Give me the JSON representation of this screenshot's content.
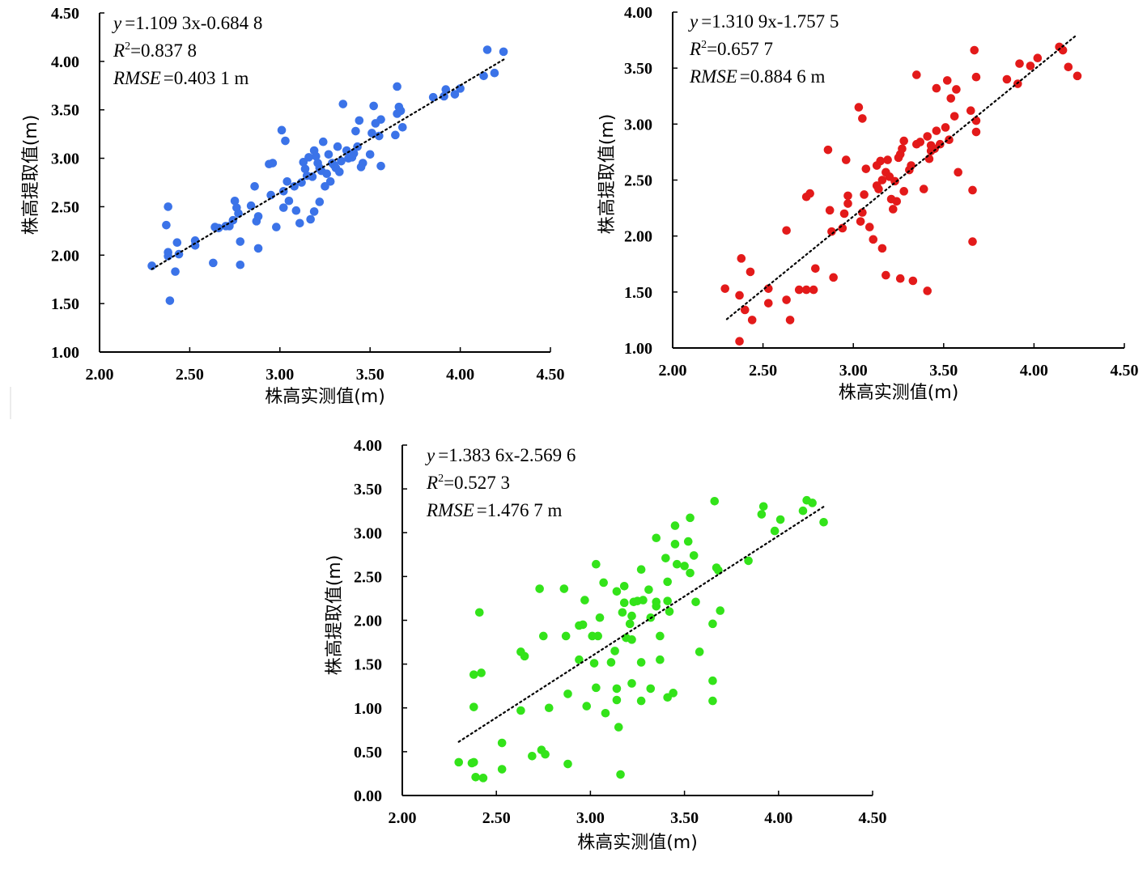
{
  "chart_data": [
    {
      "type": "scatter",
      "series_color": "#3b73e8",
      "xlabel": "株高实测值(m)",
      "ylabel": "株高提取值(m)",
      "xlim": [
        2.0,
        4.5
      ],
      "ylim": [
        1.0,
        4.5
      ],
      "x_ticks": [
        "2.00",
        "2.50",
        "3.00",
        "3.50",
        "4.00",
        "4.50"
      ],
      "y_ticks": [
        "1.00",
        "1.50",
        "2.00",
        "2.50",
        "3.00",
        "3.50",
        "4.00",
        "4.50"
      ],
      "grid": false,
      "stats": {
        "equation": {
          "lhs": "y",
          "rhs": "=1.109 3x-0.684 8"
        },
        "r2": {
          "label": "R",
          "sup": "2",
          "value": "=0.837 8"
        },
        "rmse": {
          "label": "RMSE",
          "value": "=0.403 1 m"
        }
      },
      "trendline": {
        "slope": 1.1093,
        "intercept": -0.6848,
        "x_range": [
          2.29,
          4.25
        ],
        "style": "dotted"
      },
      "points": [
        [
          2.29,
          1.89
        ],
        [
          2.37,
          2.31
        ],
        [
          2.38,
          2.5
        ],
        [
          2.38,
          2.03
        ],
        [
          2.38,
          1.99
        ],
        [
          2.39,
          1.53
        ],
        [
          2.42,
          1.83
        ],
        [
          2.43,
          2.13
        ],
        [
          2.44,
          2.01
        ],
        [
          2.53,
          2.1
        ],
        [
          2.53,
          2.15
        ],
        [
          2.63,
          1.92
        ],
        [
          2.64,
          2.29
        ],
        [
          2.66,
          2.28
        ],
        [
          2.7,
          2.3
        ],
        [
          2.72,
          2.3
        ],
        [
          2.74,
          2.36
        ],
        [
          2.75,
          2.56
        ],
        [
          2.76,
          2.49
        ],
        [
          2.77,
          2.43
        ],
        [
          2.78,
          2.14
        ],
        [
          2.78,
          1.9
        ],
        [
          2.84,
          2.51
        ],
        [
          2.86,
          2.71
        ],
        [
          2.87,
          2.35
        ],
        [
          2.88,
          2.4
        ],
        [
          2.88,
          2.07
        ],
        [
          2.94,
          2.94
        ],
        [
          2.95,
          2.62
        ],
        [
          2.96,
          2.95
        ],
        [
          2.98,
          2.29
        ],
        [
          3.01,
          3.29
        ],
        [
          3.02,
          2.66
        ],
        [
          3.02,
          2.49
        ],
        [
          3.03,
          3.18
        ],
        [
          3.04,
          2.76
        ],
        [
          3.05,
          2.56
        ],
        [
          3.08,
          2.71
        ],
        [
          3.09,
          2.46
        ],
        [
          3.11,
          2.33
        ],
        [
          3.12,
          2.75
        ],
        [
          3.13,
          2.96
        ],
        [
          3.14,
          2.89
        ],
        [
          3.15,
          2.82
        ],
        [
          3.16,
          3.01
        ],
        [
          3.17,
          2.37
        ],
        [
          3.18,
          2.81
        ],
        [
          3.19,
          2.45
        ],
        [
          3.19,
          3.08
        ],
        [
          3.2,
          3.02
        ],
        [
          3.21,
          2.95
        ],
        [
          3.22,
          2.55
        ],
        [
          3.22,
          2.9
        ],
        [
          3.23,
          2.87
        ],
        [
          3.24,
          3.17
        ],
        [
          3.25,
          2.71
        ],
        [
          3.26,
          2.84
        ],
        [
          3.27,
          3.04
        ],
        [
          3.28,
          2.76
        ],
        [
          3.29,
          2.95
        ],
        [
          3.3,
          2.93
        ],
        [
          3.31,
          2.9
        ],
        [
          3.32,
          3.12
        ],
        [
          3.33,
          2.86
        ],
        [
          3.34,
          2.97
        ],
        [
          3.35,
          3.56
        ],
        [
          3.37,
          3.08
        ],
        [
          3.38,
          3.0
        ],
        [
          3.4,
          3.01
        ],
        [
          3.41,
          3.05
        ],
        [
          3.42,
          3.28
        ],
        [
          3.43,
          3.12
        ],
        [
          3.44,
          3.39
        ],
        [
          3.45,
          2.91
        ],
        [
          3.46,
          2.95
        ],
        [
          3.5,
          3.04
        ],
        [
          3.51,
          3.26
        ],
        [
          3.52,
          3.54
        ],
        [
          3.53,
          3.36
        ],
        [
          3.55,
          3.23
        ],
        [
          3.56,
          2.92
        ],
        [
          3.56,
          3.4
        ],
        [
          3.64,
          3.24
        ],
        [
          3.65,
          3.74
        ],
        [
          3.65,
          3.46
        ],
        [
          3.66,
          3.53
        ],
        [
          3.67,
          3.49
        ],
        [
          3.68,
          3.32
        ],
        [
          3.85,
          3.63
        ],
        [
          3.91,
          3.64
        ],
        [
          3.92,
          3.71
        ],
        [
          3.97,
          3.66
        ],
        [
          4.0,
          3.72
        ],
        [
          4.13,
          3.85
        ],
        [
          4.15,
          4.12
        ],
        [
          4.19,
          3.88
        ],
        [
          4.24,
          4.1
        ]
      ]
    },
    {
      "type": "scatter",
      "series_color": "#e31a1a",
      "xlabel": "株高实测值(m)",
      "ylabel": "株高提取值(m)",
      "xlim": [
        2.0,
        4.5
      ],
      "ylim": [
        1.0,
        4.0
      ],
      "x_ticks": [
        "2.00",
        "2.50",
        "3.00",
        "3.50",
        "4.00",
        "4.50"
      ],
      "y_ticks": [
        "1.00",
        "1.50",
        "2.00",
        "2.50",
        "3.00",
        "3.50",
        "4.00"
      ],
      "grid": false,
      "stats": {
        "equation": {
          "lhs": "y",
          "rhs": "=1.310 9x-1.757 5"
        },
        "r2": {
          "label": "R",
          "sup": "2",
          "value": "=0.657 7"
        },
        "rmse": {
          "label": "RMSE",
          "value": "=0.884 6 m"
        }
      },
      "trendline": {
        "slope": 1.3109,
        "intercept": -1.7575,
        "x_range": [
          2.3,
          4.24
        ],
        "style": "dotted"
      },
      "points": [
        [
          2.29,
          1.53
        ],
        [
          2.37,
          1.06
        ],
        [
          2.37,
          1.47
        ],
        [
          2.38,
          1.8
        ],
        [
          2.4,
          1.34
        ],
        [
          2.43,
          1.68
        ],
        [
          2.44,
          1.25
        ],
        [
          2.53,
          1.53
        ],
        [
          2.53,
          1.4
        ],
        [
          2.63,
          1.43
        ],
        [
          2.63,
          2.05
        ],
        [
          2.65,
          1.25
        ],
        [
          2.7,
          1.52
        ],
        [
          2.74,
          2.35
        ],
        [
          2.74,
          1.52
        ],
        [
          2.76,
          2.38
        ],
        [
          2.78,
          1.52
        ],
        [
          2.79,
          1.71
        ],
        [
          2.86,
          2.77
        ],
        [
          2.87,
          2.23
        ],
        [
          2.88,
          2.04
        ],
        [
          2.89,
          1.63
        ],
        [
          2.94,
          2.07
        ],
        [
          2.95,
          2.2
        ],
        [
          2.96,
          2.68
        ],
        [
          2.97,
          2.36
        ],
        [
          2.97,
          2.29
        ],
        [
          3.03,
          3.15
        ],
        [
          3.04,
          2.13
        ],
        [
          3.05,
          2.21
        ],
        [
          3.05,
          3.05
        ],
        [
          3.06,
          2.37
        ],
        [
          3.07,
          2.6
        ],
        [
          3.09,
          2.08
        ],
        [
          3.11,
          1.97
        ],
        [
          3.13,
          2.45
        ],
        [
          3.13,
          2.63
        ],
        [
          3.14,
          2.42
        ],
        [
          3.15,
          2.67
        ],
        [
          3.16,
          1.89
        ],
        [
          3.16,
          2.5
        ],
        [
          3.18,
          2.57
        ],
        [
          3.18,
          1.65
        ],
        [
          3.19,
          2.68
        ],
        [
          3.2,
          2.53
        ],
        [
          3.21,
          2.33
        ],
        [
          3.22,
          2.24
        ],
        [
          3.23,
          2.49
        ],
        [
          3.24,
          2.31
        ],
        [
          3.25,
          2.7
        ],
        [
          3.26,
          2.73
        ],
        [
          3.26,
          1.62
        ],
        [
          3.27,
          2.78
        ],
        [
          3.28,
          2.4
        ],
        [
          3.28,
          2.85
        ],
        [
          3.31,
          2.59
        ],
        [
          3.32,
          2.63
        ],
        [
          3.33,
          1.6
        ],
        [
          3.35,
          2.82
        ],
        [
          3.35,
          3.44
        ],
        [
          3.37,
          2.84
        ],
        [
          3.39,
          2.42
        ],
        [
          3.41,
          1.51
        ],
        [
          3.41,
          2.89
        ],
        [
          3.42,
          2.69
        ],
        [
          3.43,
          2.81
        ],
        [
          3.43,
          2.76
        ],
        [
          3.45,
          2.78
        ],
        [
          3.46,
          2.94
        ],
        [
          3.46,
          3.32
        ],
        [
          3.48,
          2.82
        ],
        [
          3.51,
          2.97
        ],
        [
          3.52,
          3.39
        ],
        [
          3.53,
          2.86
        ],
        [
          3.54,
          3.23
        ],
        [
          3.56,
          3.07
        ],
        [
          3.57,
          3.31
        ],
        [
          3.58,
          2.57
        ],
        [
          3.65,
          3.12
        ],
        [
          3.66,
          2.41
        ],
        [
          3.66,
          1.95
        ],
        [
          3.67,
          3.66
        ],
        [
          3.68,
          3.42
        ],
        [
          3.68,
          3.03
        ],
        [
          3.68,
          2.93
        ],
        [
          3.85,
          3.4
        ],
        [
          3.91,
          3.36
        ],
        [
          3.92,
          3.54
        ],
        [
          3.98,
          3.52
        ],
        [
          4.02,
          3.59
        ],
        [
          4.14,
          3.69
        ],
        [
          4.16,
          3.66
        ],
        [
          4.19,
          3.51
        ],
        [
          4.24,
          3.43
        ]
      ]
    },
    {
      "type": "scatter",
      "series_color": "#33e31a",
      "xlabel": "株高实测值(m)",
      "ylabel": "株高提取值(m)",
      "xlim": [
        2.0,
        4.5
      ],
      "ylim": [
        0.0,
        4.0
      ],
      "x_ticks": [
        "2.00",
        "2.50",
        "3.00",
        "3.50",
        "4.00",
        "4.50"
      ],
      "y_ticks": [
        "0.00",
        "0.50",
        "1.00",
        "1.50",
        "2.00",
        "2.50",
        "3.00",
        "3.50",
        "4.00"
      ],
      "grid": false,
      "stats": {
        "equation": {
          "lhs": "y",
          "rhs": "=1.383 6x-2.569 6"
        },
        "r2": {
          "label": "R",
          "sup": "2",
          "value": "=0.527 3"
        },
        "rmse": {
          "label": "RMSE",
          "value": "=1.476 7 m"
        }
      },
      "trendline": {
        "slope": 1.3836,
        "intercept": -2.5696,
        "x_range": [
          2.3,
          4.24
        ],
        "style": "dotted"
      },
      "points": [
        [
          2.3,
          0.38
        ],
        [
          2.37,
          0.37
        ],
        [
          2.38,
          0.38
        ],
        [
          2.38,
          1.38
        ],
        [
          2.38,
          1.01
        ],
        [
          2.39,
          0.21
        ],
        [
          2.41,
          2.09
        ],
        [
          2.42,
          1.4
        ],
        [
          2.43,
          0.2
        ],
        [
          2.53,
          0.6
        ],
        [
          2.53,
          0.3
        ],
        [
          2.63,
          1.64
        ],
        [
          2.63,
          0.97
        ],
        [
          2.65,
          1.59
        ],
        [
          2.69,
          0.45
        ],
        [
          2.73,
          2.36
        ],
        [
          2.74,
          0.52
        ],
        [
          2.75,
          1.82
        ],
        [
          2.76,
          0.47
        ],
        [
          2.78,
          1.0
        ],
        [
          2.86,
          2.36
        ],
        [
          2.87,
          1.82
        ],
        [
          2.88,
          1.16
        ],
        [
          2.88,
          0.36
        ],
        [
          2.94,
          1.55
        ],
        [
          2.94,
          1.94
        ],
        [
          2.96,
          1.95
        ],
        [
          2.97,
          2.23
        ],
        [
          2.98,
          1.02
        ],
        [
          3.01,
          1.82
        ],
        [
          3.02,
          1.51
        ],
        [
          3.03,
          1.23
        ],
        [
          3.03,
          2.64
        ],
        [
          3.04,
          1.82
        ],
        [
          3.05,
          2.03
        ],
        [
          3.07,
          2.43
        ],
        [
          3.08,
          0.94
        ],
        [
          3.11,
          1.52
        ],
        [
          3.13,
          1.65
        ],
        [
          3.14,
          2.33
        ],
        [
          3.14,
          1.22
        ],
        [
          3.14,
          1.09
        ],
        [
          3.15,
          0.78
        ],
        [
          3.16,
          0.24
        ],
        [
          3.17,
          2.09
        ],
        [
          3.18,
          2.2
        ],
        [
          3.18,
          2.39
        ],
        [
          3.19,
          1.8
        ],
        [
          3.21,
          1.96
        ],
        [
          3.22,
          1.78
        ],
        [
          3.22,
          2.05
        ],
        [
          3.22,
          1.28
        ],
        [
          3.23,
          2.21
        ],
        [
          3.25,
          2.22
        ],
        [
          3.27,
          1.52
        ],
        [
          3.27,
          1.08
        ],
        [
          3.27,
          2.58
        ],
        [
          3.28,
          2.23
        ],
        [
          3.31,
          2.35
        ],
        [
          3.32,
          2.03
        ],
        [
          3.32,
          1.22
        ],
        [
          3.35,
          2.21
        ],
        [
          3.35,
          2.16
        ],
        [
          3.35,
          2.94
        ],
        [
          3.37,
          1.55
        ],
        [
          3.37,
          1.82
        ],
        [
          3.4,
          2.71
        ],
        [
          3.41,
          2.44
        ],
        [
          3.41,
          2.22
        ],
        [
          3.41,
          1.12
        ],
        [
          3.42,
          2.1
        ],
        [
          3.44,
          1.17
        ],
        [
          3.45,
          3.08
        ],
        [
          3.45,
          2.87
        ],
        [
          3.46,
          2.64
        ],
        [
          3.5,
          2.62
        ],
        [
          3.52,
          2.9
        ],
        [
          3.53,
          3.17
        ],
        [
          3.53,
          2.54
        ],
        [
          3.55,
          2.74
        ],
        [
          3.56,
          2.21
        ],
        [
          3.58,
          1.64
        ],
        [
          3.65,
          1.96
        ],
        [
          3.65,
          1.31
        ],
        [
          3.65,
          1.08
        ],
        [
          3.66,
          3.36
        ],
        [
          3.67,
          2.6
        ],
        [
          3.68,
          2.57
        ],
        [
          3.69,
          2.11
        ],
        [
          3.84,
          2.68
        ],
        [
          3.91,
          3.21
        ],
        [
          3.92,
          3.3
        ],
        [
          3.98,
          3.02
        ],
        [
          4.01,
          3.15
        ],
        [
          4.13,
          3.25
        ],
        [
          4.15,
          3.37
        ],
        [
          4.18,
          3.34
        ],
        [
          4.24,
          3.12
        ]
      ]
    }
  ]
}
